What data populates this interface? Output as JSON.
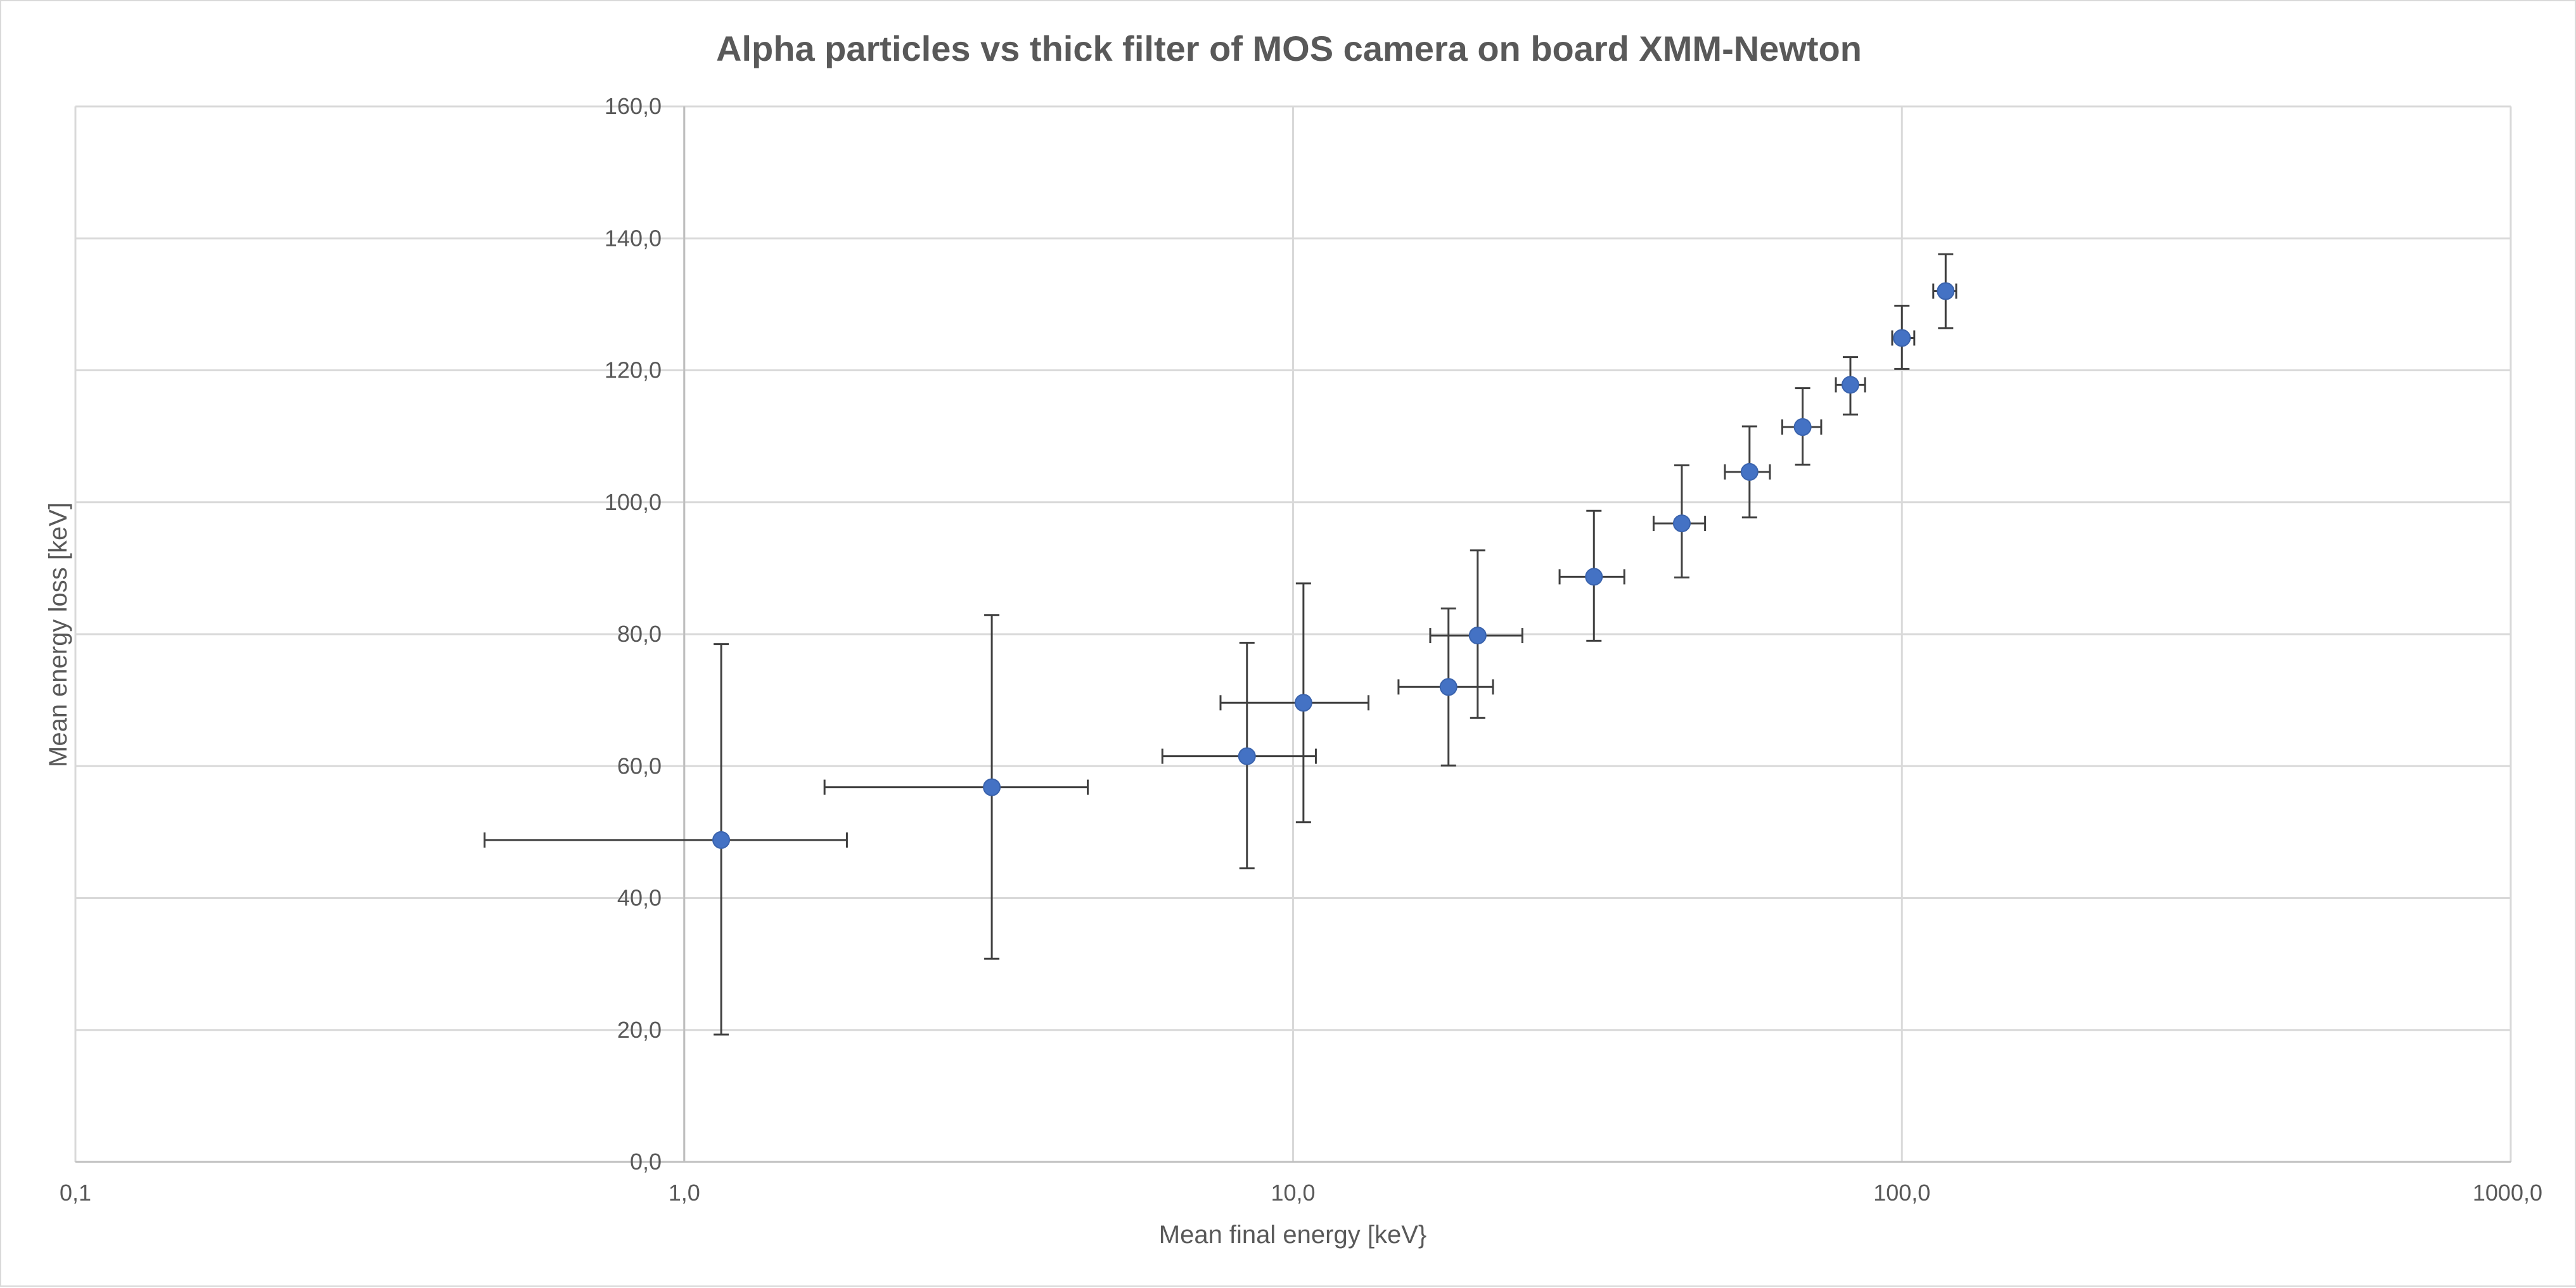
{
  "chart_data": {
    "type": "scatter",
    "title": "Alpha particles vs thick filter of MOS camera on board XMM-Newton",
    "xlabel": "Mean final energy [keV}",
    "ylabel": "Mean energy loss [keV]",
    "x_scale": "log",
    "xlim": [
      0.1,
      1000
    ],
    "ylim": [
      0,
      160
    ],
    "x_ticks": [
      0.1,
      1,
      10,
      100,
      1000
    ],
    "x_tick_labels": [
      "0,1",
      "1,0",
      "10,0",
      "100,0",
      "1000,0"
    ],
    "y_ticks": [
      0,
      20,
      40,
      60,
      80,
      100,
      120,
      140,
      160
    ],
    "y_tick_labels": [
      "0,0",
      "20,0",
      "40,0",
      "60,0",
      "80,0",
      "100,0",
      "120,0",
      "140,0",
      "160,0"
    ],
    "grid": true,
    "legend": "none",
    "marker_color": "#4472C4",
    "error_bar_color": "#404040",
    "gridline_color": "#d9d9d9",
    "series": [
      {
        "points": [
          {
            "x": 1.15,
            "y": 48.8,
            "x_low": 0.47,
            "x_high": 1.85,
            "y_low": 19.3,
            "y_high": 78.5
          },
          {
            "x": 3.2,
            "y": 56.8,
            "x_low": 1.7,
            "x_high": 4.6,
            "y_low": 30.8,
            "y_high": 82.9
          },
          {
            "x": 8.4,
            "y": 61.5,
            "x_low": 6.1,
            "x_high": 10.9,
            "y_low": 44.5,
            "y_high": 78.7
          },
          {
            "x": 10.4,
            "y": 69.6,
            "x_low": 7.6,
            "x_high": 13.3,
            "y_low": 51.5,
            "y_high": 87.7
          },
          {
            "x": 18.0,
            "y": 72.0,
            "x_low": 14.9,
            "x_high": 21.3,
            "y_low": 60.1,
            "y_high": 83.9
          },
          {
            "x": 20.1,
            "y": 79.8,
            "x_low": 16.8,
            "x_high": 23.8,
            "y_low": 67.3,
            "y_high": 92.7
          },
          {
            "x": 31.2,
            "y": 88.7,
            "x_low": 27.4,
            "x_high": 35.0,
            "y_low": 79.0,
            "y_high": 98.7
          },
          {
            "x": 43.5,
            "y": 96.8,
            "x_low": 39.1,
            "x_high": 47.5,
            "y_low": 88.6,
            "y_high": 105.6
          },
          {
            "x": 56.2,
            "y": 104.6,
            "x_low": 51.2,
            "x_high": 60.7,
            "y_low": 97.7,
            "y_high": 111.5
          },
          {
            "x": 68.7,
            "y": 111.4,
            "x_low": 63.6,
            "x_high": 73.7,
            "y_low": 105.7,
            "y_high": 117.3
          },
          {
            "x": 82.3,
            "y": 117.8,
            "x_low": 77.9,
            "x_high": 87.0,
            "y_low": 113.3,
            "y_high": 122.0
          },
          {
            "x": 100.0,
            "y": 124.9,
            "x_low": 96.4,
            "x_high": 104.8,
            "y_low": 120.2,
            "y_high": 129.8
          },
          {
            "x": 118.0,
            "y": 132.0,
            "x_low": 112.6,
            "x_high": 122.8,
            "y_low": 126.4,
            "y_high": 137.6
          }
        ]
      }
    ]
  }
}
